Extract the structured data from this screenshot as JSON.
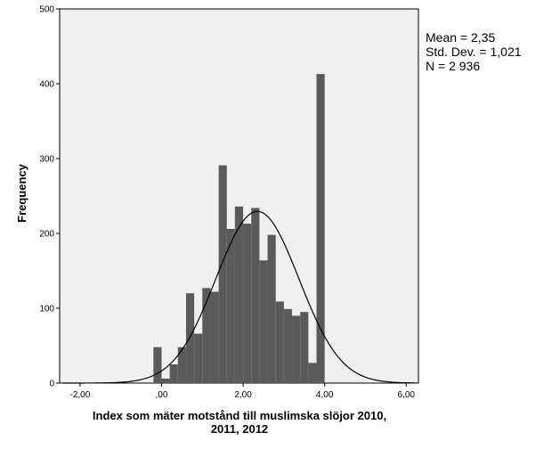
{
  "chart_data": {
    "type": "bar",
    "subtype": "histogram",
    "xlabel_lines": [
      "Index som mäter motstånd till muslimska slöjor 2010,",
      "2011, 2012"
    ],
    "ylabel": "Frequency",
    "xlim": [
      -2.5,
      6.3
    ],
    "ylim": [
      0,
      500
    ],
    "xticks": [
      {
        "value": -2,
        "label": "-2,00"
      },
      {
        "value": 0,
        "label": ",00"
      },
      {
        "value": 2,
        "label": "2,00"
      },
      {
        "value": 4,
        "label": "4,00"
      },
      {
        "value": 6,
        "label": "6,00"
      }
    ],
    "yticks": [
      0,
      100,
      200,
      300,
      400,
      500
    ],
    "bin_width": 0.2,
    "bins": [
      {
        "x0": -0.2,
        "value": 48
      },
      {
        "x0": 0.0,
        "value": 6
      },
      {
        "x0": 0.2,
        "value": 25
      },
      {
        "x0": 0.4,
        "value": 48
      },
      {
        "x0": 0.6,
        "value": 120
      },
      {
        "x0": 0.8,
        "value": 66
      },
      {
        "x0": 1.0,
        "value": 127
      },
      {
        "x0": 1.2,
        "value": 122
      },
      {
        "x0": 1.4,
        "value": 291
      },
      {
        "x0": 1.6,
        "value": 206
      },
      {
        "x0": 1.8,
        "value": 236
      },
      {
        "x0": 2.0,
        "value": 213
      },
      {
        "x0": 2.2,
        "value": 234
      },
      {
        "x0": 2.4,
        "value": 164
      },
      {
        "x0": 2.6,
        "value": 198
      },
      {
        "x0": 2.8,
        "value": 109
      },
      {
        "x0": 3.0,
        "value": 99
      },
      {
        "x0": 3.2,
        "value": 90
      },
      {
        "x0": 3.4,
        "value": 95
      },
      {
        "x0": 3.6,
        "value": 27
      },
      {
        "x0": 3.8,
        "value": 413
      }
    ],
    "normal_curve": {
      "mean": 2.35,
      "sd": 1.021,
      "n": 2936
    },
    "stats_lines": [
      "Mean = 2,35",
      "Std. Dev. = 1,021",
      "N = 2 936"
    ],
    "grid": false,
    "colors": {
      "plot_bg": "#f0f0f0",
      "bar": "#5a5a5a",
      "curve": "#000000"
    }
  }
}
